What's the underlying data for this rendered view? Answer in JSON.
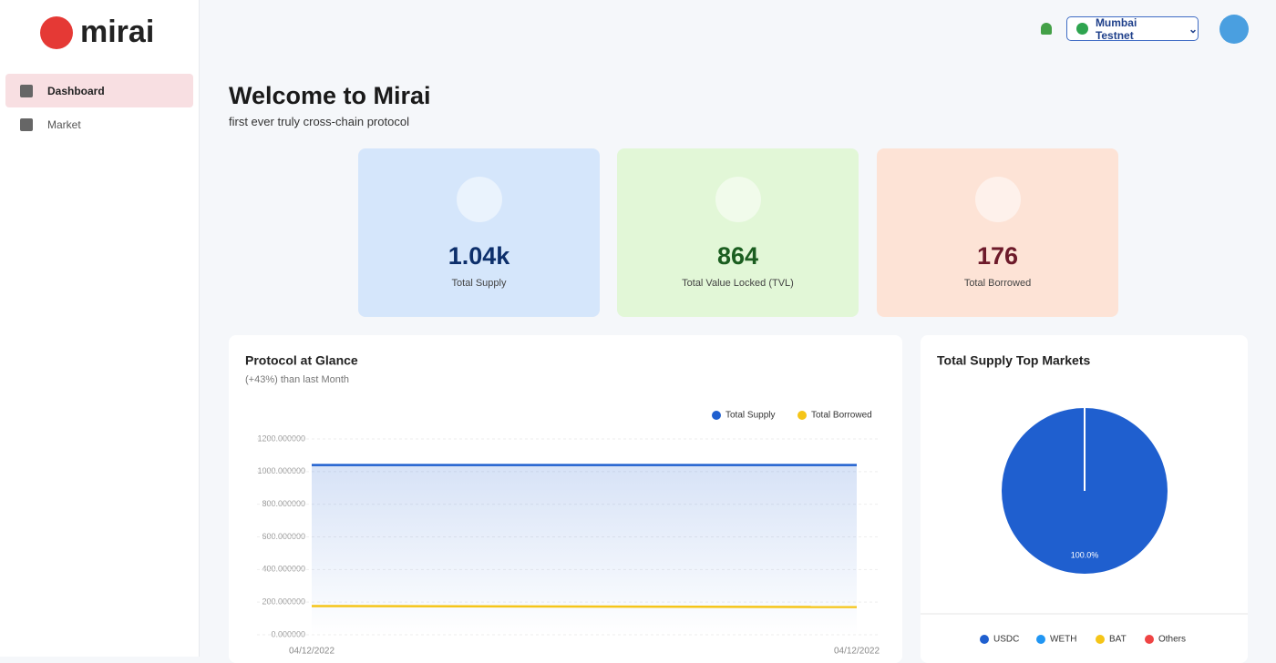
{
  "sidebar": {
    "logo": "mirai",
    "nav": [
      "Dashboard",
      "Market"
    ]
  },
  "header": {
    "network": "Mumbai Testnet"
  },
  "welcome": {
    "title": "Welcome to Mirai",
    "subtitle": "first ever truly cross-chain protocol"
  },
  "stats": [
    {
      "value": "1.04k",
      "label": "Total Supply"
    },
    {
      "value": "864",
      "label": "Total Value Locked (TVL)"
    },
    {
      "value": "176",
      "label": "Total Borrowed"
    }
  ],
  "chart_data": [
    {
      "type": "line",
      "title": "Protocol at Glance",
      "subtitle": "(+43%) than last Month",
      "categories": [
        "04/12/2022",
        "04/12/2022"
      ],
      "series": [
        {
          "name": "Total Supply",
          "color": "#1f5fcf",
          "values": [
            1040,
            1040
          ],
          "area": true
        },
        {
          "name": "Total Borrowed",
          "color": "#f5c518",
          "values": [
            176,
            170
          ]
        }
      ],
      "ylim": [
        0,
        1200
      ],
      "yticks": [
        {
          "value": 0,
          "label": "0.000000"
        },
        {
          "value": 200,
          "label": "200.000000"
        },
        {
          "value": 400,
          "label": "400.000000"
        },
        {
          "value": 600,
          "label": "600.000000"
        },
        {
          "value": 800,
          "label": "800.000000"
        },
        {
          "value": 1000,
          "label": "1000.000000"
        },
        {
          "value": 1200,
          "label": "1200.000000"
        }
      ],
      "grid": true,
      "legend": "top-right"
    },
    {
      "type": "pie",
      "title": "Total Supply Top Markets",
      "categories": [
        "USDC",
        "WETH",
        "BAT",
        "Others"
      ],
      "values": [
        100,
        0,
        0,
        0
      ],
      "value_labels": [
        "100.0%",
        null,
        null,
        null
      ],
      "colors": [
        "#1f5fcf",
        "#2196f3",
        "#f5c518",
        "#ef4444"
      ],
      "legend": "bottom"
    }
  ]
}
